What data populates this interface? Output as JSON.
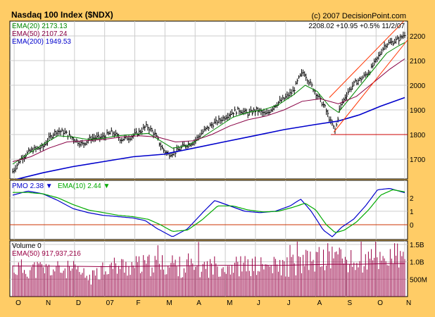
{
  "title": "Nasdaq 100 Index ($NDX)",
  "copyright": "(c) 2007 DecisionPoint.com",
  "quote": {
    "last": "2208.02",
    "change": "+10.95",
    "pct": "+0.5%",
    "date": "11/2/07"
  },
  "colors": {
    "frame": "#ffcc66",
    "panel": "#ffffff",
    "grid": "#cccccc",
    "price": "#000000",
    "ema20": "#008800",
    "ema50": "#880044",
    "ema200": "#0000cc",
    "channel": "#ff3300",
    "support": "#cc0000",
    "pmo": "#0000cc",
    "pmo_signal": "#00aa00",
    "zero_line": "#cc3300",
    "volume": "#990044"
  },
  "price_legend": [
    {
      "label": "EMA(20)",
      "value": "2173.13",
      "color": "#008800"
    },
    {
      "label": "EMA(50)",
      "value": "2107.24",
      "color": "#880044"
    },
    {
      "label": "EMA(200)",
      "value": "1949.53",
      "color": "#0000cc"
    }
  ],
  "pmo_legend": {
    "pmo_label": "PMO",
    "pmo_value": "2.38",
    "signal_label": "EMA(10)",
    "signal_value": "2.44"
  },
  "volume_legend": {
    "vol_label": "Volume",
    "vol_value": "0",
    "ema_label": "EMA(50)",
    "ema_value": "917,937,216"
  },
  "chart_data": [
    {
      "type": "line",
      "panel": "price",
      "ylim": [
        1620,
        2260
      ],
      "yticks": [
        1700,
        1800,
        1900,
        2000,
        2100,
        2200
      ],
      "xlim": [
        0,
        13
      ],
      "xlabels": [
        {
          "label": "O",
          "x": 0.05
        },
        {
          "label": "N",
          "x": 1.05
        },
        {
          "label": "D",
          "x": 2.05
        },
        {
          "label": "07",
          "x": 3.05
        },
        {
          "label": "F",
          "x": 4.05
        },
        {
          "label": "M",
          "x": 5.05
        },
        {
          "label": "A",
          "x": 6.05
        },
        {
          "label": "M",
          "x": 7.05
        },
        {
          "label": "J",
          "x": 8.05
        },
        {
          "label": "J",
          "x": 9.05
        },
        {
          "label": "A",
          "x": 10.05
        },
        {
          "label": "S",
          "x": 11.05
        },
        {
          "label": "O",
          "x": 12.05
        },
        {
          "label": "N",
          "x": 13.0
        }
      ],
      "series": [
        {
          "key": "price",
          "points": [
            [
              0,
              1650
            ],
            [
              0.3,
              1705
            ],
            [
              0.6,
              1735
            ],
            [
              1,
              1750
            ],
            [
              1.25,
              1790
            ],
            [
              1.45,
              1815
            ],
            [
              1.7,
              1810
            ],
            [
              2,
              1785
            ],
            [
              2.3,
              1760
            ],
            [
              2.6,
              1785
            ],
            [
              3,
              1790
            ],
            [
              3.3,
              1810
            ],
            [
              3.6,
              1780
            ],
            [
              3.9,
              1790
            ],
            [
              4.2,
              1810
            ],
            [
              4.45,
              1835
            ],
            [
              4.7,
              1805
            ],
            [
              4.95,
              1745
            ],
            [
              5.15,
              1720
            ],
            [
              5.4,
              1730
            ],
            [
              5.7,
              1755
            ],
            [
              6,
              1770
            ],
            [
              6.3,
              1810
            ],
            [
              6.6,
              1840
            ],
            [
              6.9,
              1860
            ],
            [
              7.2,
              1885
            ],
            [
              7.5,
              1900
            ],
            [
              7.8,
              1885
            ],
            [
              8.1,
              1900
            ],
            [
              8.4,
              1880
            ],
            [
              8.7,
              1920
            ],
            [
              9,
              1945
            ],
            [
              9.3,
              1975
            ],
            [
              9.5,
              2030
            ],
            [
              9.65,
              2055
            ],
            [
              9.85,
              2010
            ],
            [
              10.1,
              1960
            ],
            [
              10.35,
              1910
            ],
            [
              10.55,
              1850
            ],
            [
              10.7,
              1815
            ],
            [
              10.85,
              1910
            ],
            [
              11.1,
              1970
            ],
            [
              11.35,
              2010
            ],
            [
              11.6,
              2030
            ],
            [
              11.85,
              2060
            ],
            [
              12.1,
              2110
            ],
            [
              12.35,
              2165
            ],
            [
              12.6,
              2175
            ],
            [
              12.85,
              2190
            ],
            [
              13,
              2208
            ]
          ]
        },
        {
          "key": "ema20",
          "points": [
            [
              0,
              1680
            ],
            [
              0.5,
              1720
            ],
            [
              1,
              1760
            ],
            [
              1.5,
              1795
            ],
            [
              2,
              1790
            ],
            [
              2.5,
              1780
            ],
            [
              3,
              1785
            ],
            [
              3.5,
              1795
            ],
            [
              4,
              1800
            ],
            [
              4.5,
              1805
            ],
            [
              4.9,
              1775
            ],
            [
              5.3,
              1745
            ],
            [
              5.8,
              1755
            ],
            [
              6.3,
              1790
            ],
            [
              6.8,
              1830
            ],
            [
              7.3,
              1870
            ],
            [
              7.8,
              1890
            ],
            [
              8.3,
              1900
            ],
            [
              8.8,
              1920
            ],
            [
              9.3,
              1960
            ],
            [
              9.7,
              2000
            ],
            [
              10.1,
              1975
            ],
            [
              10.5,
              1915
            ],
            [
              10.8,
              1890
            ],
            [
              11.2,
              1950
            ],
            [
              11.6,
              2010
            ],
            [
              12,
              2070
            ],
            [
              12.4,
              2130
            ],
            [
              12.8,
              2160
            ],
            [
              13,
              2173
            ]
          ]
        },
        {
          "key": "ema50",
          "points": [
            [
              0,
              1690
            ],
            [
              0.6,
              1710
            ],
            [
              1.2,
              1745
            ],
            [
              1.8,
              1770
            ],
            [
              2.4,
              1775
            ],
            [
              3,
              1780
            ],
            [
              3.6,
              1790
            ],
            [
              4.2,
              1795
            ],
            [
              4.8,
              1790
            ],
            [
              5.4,
              1770
            ],
            [
              6,
              1775
            ],
            [
              6.6,
              1800
            ],
            [
              7.2,
              1835
            ],
            [
              7.8,
              1860
            ],
            [
              8.4,
              1875
            ],
            [
              9,
              1900
            ],
            [
              9.6,
              1935
            ],
            [
              10.2,
              1945
            ],
            [
              10.8,
              1925
            ],
            [
              11.4,
              1955
            ],
            [
              12,
              2015
            ],
            [
              12.5,
              2065
            ],
            [
              13,
              2107
            ]
          ]
        },
        {
          "key": "ema200",
          "points": [
            [
              0,
              1615
            ],
            [
              1,
              1645
            ],
            [
              2,
              1670
            ],
            [
              3,
              1690
            ],
            [
              4,
              1710
            ],
            [
              5,
              1720
            ],
            [
              6,
              1745
            ],
            [
              7,
              1770
            ],
            [
              8,
              1795
            ],
            [
              9,
              1820
            ],
            [
              10,
              1840
            ],
            [
              10.8,
              1855
            ],
            [
              11.5,
              1880
            ],
            [
              12.2,
              1915
            ],
            [
              13,
              1950
            ]
          ]
        },
        {
          "key": "channel_lower",
          "points": [
            [
              10.65,
              1810
            ],
            [
              13.2,
              2200
            ]
          ]
        },
        {
          "key": "channel_upper",
          "points": [
            [
              10.5,
              1950
            ],
            [
              13.25,
              2295
            ]
          ]
        },
        {
          "key": "support",
          "points": [
            [
              10.55,
              1800
            ],
            [
              13.25,
              1800
            ]
          ]
        }
      ]
    },
    {
      "type": "line",
      "panel": "pmo",
      "ylim": [
        -1.1,
        3.3
      ],
      "yticks": [
        0,
        1,
        2
      ],
      "series": [
        {
          "key": "pmo",
          "points": [
            [
              0,
              2.2
            ],
            [
              0.5,
              2.5
            ],
            [
              1,
              2.3
            ],
            [
              1.5,
              1.8
            ],
            [
              2,
              1.2
            ],
            [
              2.5,
              0.9
            ],
            [
              3,
              0.7
            ],
            [
              3.5,
              0.6
            ],
            [
              4,
              0.5
            ],
            [
              4.4,
              0.3
            ],
            [
              4.8,
              -0.3
            ],
            [
              5.3,
              -0.9
            ],
            [
              5.8,
              -0.3
            ],
            [
              6.3,
              0.9
            ],
            [
              6.7,
              1.8
            ],
            [
              7.2,
              1.4
            ],
            [
              7.7,
              1.0
            ],
            [
              8.2,
              0.9
            ],
            [
              8.7,
              1.0
            ],
            [
              9.2,
              1.4
            ],
            [
              9.55,
              1.9
            ],
            [
              9.9,
              1.0
            ],
            [
              10.3,
              -0.4
            ],
            [
              10.6,
              -0.9
            ],
            [
              10.9,
              -0.2
            ],
            [
              11.3,
              0.4
            ],
            [
              11.7,
              1.4
            ],
            [
              12.1,
              2.6
            ],
            [
              12.5,
              2.7
            ],
            [
              13,
              2.38
            ]
          ]
        },
        {
          "key": "pmo_signal",
          "points": [
            [
              0,
              2.4
            ],
            [
              0.5,
              2.4
            ],
            [
              1,
              2.3
            ],
            [
              1.5,
              2.0
            ],
            [
              2,
              1.5
            ],
            [
              2.5,
              1.1
            ],
            [
              3,
              0.9
            ],
            [
              3.5,
              0.7
            ],
            [
              4,
              0.6
            ],
            [
              4.5,
              0.4
            ],
            [
              4.9,
              0.0
            ],
            [
              5.3,
              -0.5
            ],
            [
              5.8,
              -0.4
            ],
            [
              6.3,
              0.4
            ],
            [
              6.8,
              1.4
            ],
            [
              7.3,
              1.4
            ],
            [
              7.8,
              1.1
            ],
            [
              8.3,
              0.95
            ],
            [
              8.8,
              1.0
            ],
            [
              9.3,
              1.3
            ],
            [
              9.7,
              1.6
            ],
            [
              10.05,
              1.1
            ],
            [
              10.4,
              0.0
            ],
            [
              10.7,
              -0.6
            ],
            [
              11.0,
              -0.4
            ],
            [
              11.4,
              0.2
            ],
            [
              11.8,
              1.1
            ],
            [
              12.2,
              2.2
            ],
            [
              12.6,
              2.6
            ],
            [
              13,
              2.44
            ]
          ]
        }
      ]
    },
    {
      "type": "bar",
      "panel": "volume",
      "ylim": [
        0,
        1.6
      ],
      "ytick_labels": [
        {
          "label": "1.5B",
          "v": 1.5
        },
        {
          "label": "1.0B",
          "v": 1.0
        },
        {
          "label": "500M",
          "v": 0.5
        }
      ],
      "volume_profile": [
        [
          0,
          0.85
        ],
        [
          2,
          0.8
        ],
        [
          2.6,
          0.55
        ],
        [
          3,
          0.9
        ],
        [
          5,
          0.95
        ],
        [
          6,
          0.85
        ],
        [
          7,
          0.95
        ],
        [
          8,
          0.9
        ],
        [
          9,
          0.9
        ],
        [
          10,
          1.1
        ],
        [
          10.7,
          1.25
        ],
        [
          11.3,
          1.0
        ],
        [
          12,
          1.1
        ],
        [
          12.7,
          1.25
        ],
        [
          13,
          1.05
        ]
      ],
      "ema_line": [
        [
          0,
          0.88
        ],
        [
          2,
          0.87
        ],
        [
          3,
          0.86
        ],
        [
          5,
          0.88
        ],
        [
          7,
          0.9
        ],
        [
          9,
          0.9
        ],
        [
          10.5,
          0.93
        ],
        [
          11.5,
          0.93
        ],
        [
          12.5,
          0.95
        ],
        [
          13,
          0.95
        ]
      ]
    }
  ]
}
